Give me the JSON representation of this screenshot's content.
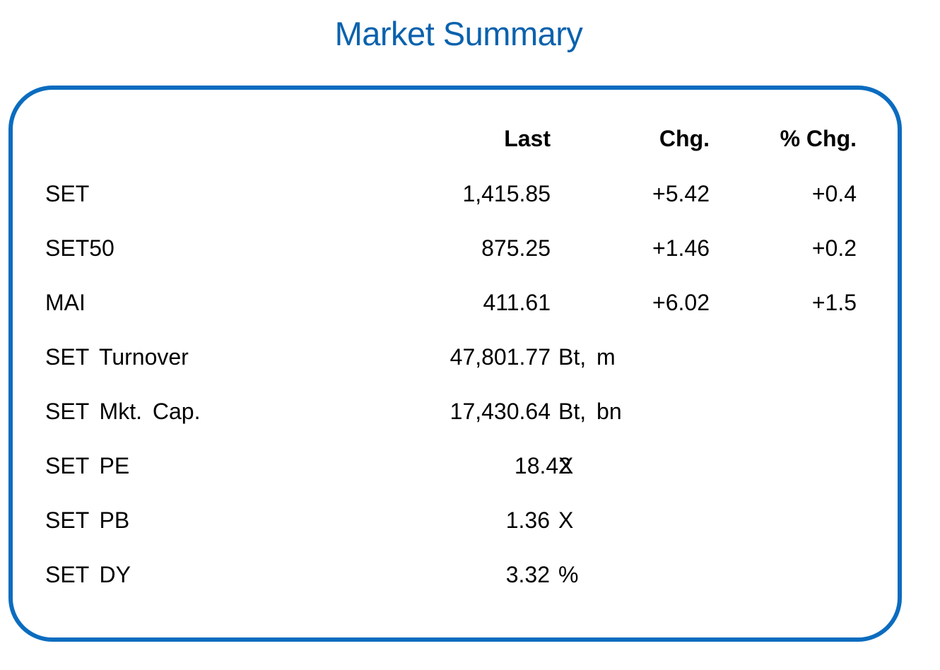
{
  "title": "Market Summary",
  "columns": {
    "last": "Last",
    "chg": "Chg.",
    "pct_chg": "% Chg."
  },
  "rows": [
    {
      "name": "SET",
      "last": "1,415.85",
      "chg": "+5.42",
      "pct_chg": "+0.4",
      "unit": ""
    },
    {
      "name": "SET50",
      "last": "875.25",
      "chg": "+1.46",
      "pct_chg": "+0.2",
      "unit": ""
    },
    {
      "name": "MAI",
      "last": "411.61",
      "chg": "+6.02",
      "pct_chg": "+1.5",
      "unit": ""
    },
    {
      "name": "SET Turnover",
      "last": "47,801.77",
      "chg": "",
      "pct_chg": "",
      "unit": "Bt, m"
    },
    {
      "name": "SET Mkt. Cap.",
      "last": "17,430.64",
      "chg": "",
      "pct_chg": "",
      "unit": "Bt, bn"
    },
    {
      "name": "SET PE",
      "last": "18.42",
      "chg": "",
      "pct_chg": "",
      "unit": "X"
    },
    {
      "name": "SET PB",
      "last": "1.36",
      "chg": "",
      "pct_chg": "",
      "unit": "X"
    },
    {
      "name": "SET DY",
      "last": "3.32",
      "chg": "",
      "pct_chg": "",
      "unit": "%"
    }
  ],
  "colors": {
    "title": "#0a62ad",
    "border": "#0b6cbf"
  }
}
